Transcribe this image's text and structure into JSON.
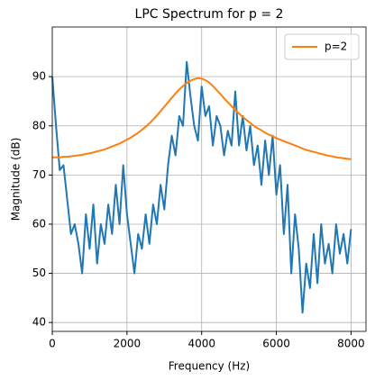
{
  "chart_data": {
    "type": "line",
    "title": "LPC Spectrum for p = 2",
    "xlabel": "Frequency (Hz)",
    "ylabel": "Magnitude (dB)",
    "x": [
      0,
      100,
      200,
      300,
      400,
      500,
      600,
      700,
      800,
      900,
      1000,
      1100,
      1200,
      1300,
      1400,
      1500,
      1600,
      1700,
      1800,
      1900,
      2000,
      2100,
      2200,
      2300,
      2400,
      2500,
      2600,
      2700,
      2800,
      2900,
      3000,
      3100,
      3200,
      3300,
      3400,
      3500,
      3600,
      3700,
      3800,
      3900,
      4000,
      4100,
      4200,
      4300,
      4400,
      4500,
      4600,
      4700,
      4800,
      4900,
      5000,
      5100,
      5200,
      5300,
      5400,
      5500,
      5600,
      5700,
      5800,
      5900,
      6000,
      6100,
      6200,
      6300,
      6400,
      6500,
      6600,
      6700,
      6800,
      6900,
      7000,
      7100,
      7200,
      7300,
      7400,
      7500,
      7600,
      7700,
      7800,
      7900,
      8000
    ],
    "series": [
      {
        "color": "#1f77b4",
        "values": [
          90,
          80,
          71,
          72,
          65,
          58,
          60,
          56,
          50,
          62,
          55,
          64,
          52,
          60,
          56,
          64,
          58,
          68,
          60,
          72,
          62,
          56,
          50,
          58,
          55,
          62,
          56,
          64,
          60,
          68,
          63,
          72,
          78,
          74,
          82,
          80,
          93,
          86,
          80,
          77,
          88,
          82,
          84,
          76,
          82,
          80,
          74,
          79,
          76,
          87,
          76,
          82,
          75,
          80,
          72,
          76,
          68,
          77,
          70,
          78,
          66,
          72,
          58,
          68,
          50,
          62,
          55,
          42,
          52,
          47,
          58,
          48,
          60,
          52,
          56,
          50,
          60,
          54,
          58,
          52,
          59
        ]
      },
      {
        "name": "p=2",
        "color": "#ff7f0e",
        "values": [
          73.6,
          73.6,
          73.6,
          73.7,
          73.7,
          73.8,
          73.9,
          74.0,
          74.1,
          74.3,
          74.4,
          74.6,
          74.8,
          75.0,
          75.2,
          75.5,
          75.8,
          76.1,
          76.4,
          76.8,
          77.2,
          77.6,
          78.1,
          78.6,
          79.2,
          79.8,
          80.5,
          81.3,
          82.1,
          83.0,
          83.9,
          84.8,
          85.7,
          86.6,
          87.4,
          88.1,
          88.7,
          89.2,
          89.5,
          89.7,
          89.6,
          89.3,
          88.8,
          88.1,
          87.3,
          86.5,
          85.6,
          84.8,
          84.0,
          83.2,
          82.5,
          81.8,
          81.2,
          80.6,
          80.0,
          79.5,
          79.1,
          78.6,
          78.2,
          77.9,
          77.5,
          77.2,
          76.9,
          76.6,
          76.3,
          76.0,
          75.7,
          75.4,
          75.1,
          74.9,
          74.7,
          74.5,
          74.3,
          74.1,
          73.9,
          73.8,
          73.6,
          73.5,
          73.4,
          73.3,
          73.2
        ]
      }
    ],
    "xlim": [
      0,
      8400
    ],
    "ylim": [
      38.2,
      100.1
    ],
    "xticks": [
      0,
      2000,
      4000,
      6000,
      8000
    ],
    "yticks": [
      40,
      50,
      60,
      70,
      80,
      90
    ],
    "grid": true,
    "legend": "upper right"
  }
}
